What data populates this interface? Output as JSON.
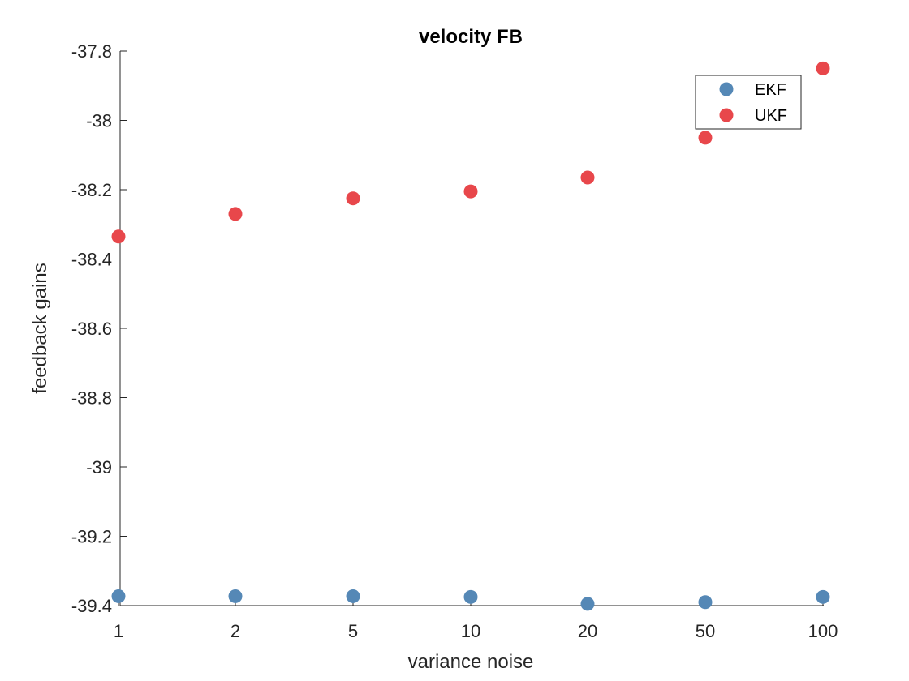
{
  "chart_data": {
    "type": "scatter",
    "title": "velocity FB",
    "xlabel": "variance noise",
    "ylabel": "feedback gains",
    "categories": [
      "1",
      "2",
      "5",
      "10",
      "20",
      "50",
      "100"
    ],
    "yticks": [
      "-37.8",
      "-38",
      "-38.2",
      "-38.4",
      "-38.6",
      "-38.8",
      "-39",
      "-39.2",
      "-39.4"
    ],
    "ylim": [
      -39.4,
      -37.8
    ],
    "grid": false,
    "legend_position": "top-right",
    "series": [
      {
        "name": "EKF",
        "color": "#5588b6",
        "values": [
          -39.373,
          -39.373,
          -39.373,
          -39.375,
          -39.395,
          -39.39,
          -39.375
        ]
      },
      {
        "name": "UKF",
        "color": "#e8474b",
        "values": [
          -38.335,
          -38.27,
          -38.225,
          -38.205,
          -38.165,
          -38.05,
          -37.85
        ]
      }
    ]
  }
}
